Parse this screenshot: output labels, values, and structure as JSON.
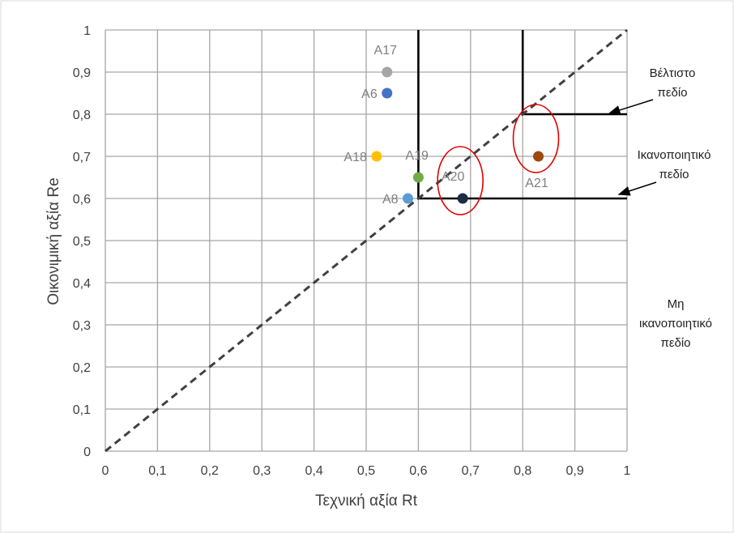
{
  "chart_data": {
    "type": "scatter",
    "title": "",
    "xlabel": "Τεχνική αξία Rt",
    "ylabel": "Οικονιμική αξία Re",
    "xlim": [
      0,
      1
    ],
    "ylim": [
      0,
      1
    ],
    "grid": true,
    "x_ticks": [
      "0",
      "0,1",
      "0,2",
      "0,3",
      "0,4",
      "0,5",
      "0,6",
      "0,7",
      "0,8",
      "0,9",
      "1"
    ],
    "y_ticks": [
      "0",
      "0,1",
      "0,2",
      "0,3",
      "0,4",
      "0,5",
      "0,6",
      "0,7",
      "0,8",
      "0,9",
      "1"
    ],
    "points": [
      {
        "label": "A17",
        "x": 0.54,
        "y": 0.9,
        "color": "#a6a6a6"
      },
      {
        "label": "A6",
        "x": 0.54,
        "y": 0.85,
        "color": "#4472c4"
      },
      {
        "label": "A18",
        "x": 0.52,
        "y": 0.7,
        "color": "#ffc000"
      },
      {
        "label": "A19",
        "x": 0.6,
        "y": 0.65,
        "color": "#70ad47"
      },
      {
        "label": "A8",
        "x": 0.58,
        "y": 0.6,
        "color": "#5b9bd5"
      },
      {
        "label": "A20",
        "x": 0.685,
        "y": 0.6,
        "color": "#1f2a44"
      },
      {
        "label": "A21",
        "x": 0.83,
        "y": 0.7,
        "color": "#9e480e"
      }
    ],
    "diagonal": {
      "from": [
        0,
        0
      ],
      "to": [
        1,
        1
      ],
      "style": "dashed"
    },
    "regions": [
      {
        "name": "Βέλτιστο πεδίο",
        "x_min": 0.8,
        "y_min": 0.8
      },
      {
        "name": "Ικανοποιητικό πεδίο",
        "x_min": 0.6,
        "y_min": 0.6
      },
      {
        "name": "Μη ικανοποιητικό πεδίο"
      }
    ],
    "highlighted": [
      "A20",
      "A21"
    ]
  },
  "annotations": {
    "optimal_line1": "Βέλτιστο",
    "optimal_line2": "πεδίο",
    "satisfactory_line1": "Ικανοποιητικό",
    "satisfactory_line2": "πεδίο",
    "unsatisfactory_line1": "Μη",
    "unsatisfactory_line2": "ικανοποιητικό",
    "unsatisfactory_line3": "πεδίο"
  },
  "colors": {
    "grid": "#a6a6a6",
    "region_border": "#000000",
    "highlight_ellipse": "#e00000",
    "diagonal": "#404040"
  }
}
